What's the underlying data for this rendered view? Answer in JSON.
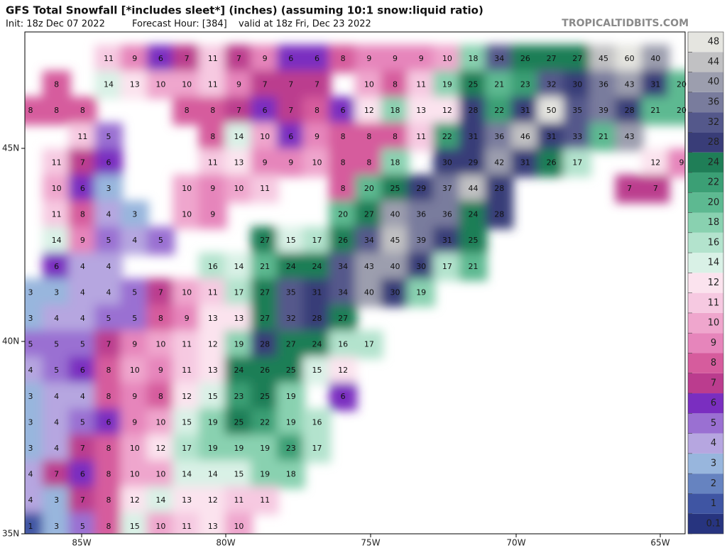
{
  "header": {
    "title": "GFS Total Snowfall [*includes sleet*] (inches) (assuming 10:1 snow:liquid ratio)",
    "init": "Init: 18z Dec 07 2022",
    "forecast_hour": "Forecast Hour: [384]",
    "valid": "valid at 18z Fri, Dec 23 2022",
    "credit": "TROPICALTIDBITS.COM"
  },
  "axes": {
    "latitudes": [
      "45N",
      "40N",
      "35N"
    ],
    "longitudes": [
      "85W",
      "80W",
      "75W",
      "70W",
      "65W"
    ]
  },
  "colorbar": {
    "levels": [
      0.1,
      1,
      2,
      3,
      4,
      5,
      6,
      7,
      8,
      9,
      10,
      11,
      12,
      14,
      16,
      18,
      20,
      22,
      24,
      28,
      32,
      36,
      40,
      44,
      48
    ],
    "colors": [
      "#27347f",
      "#3f55a3",
      "#6683c0",
      "#98b6dd",
      "#b6a6e0",
      "#9a70d2",
      "#7a2ec0",
      "#bb3c8e",
      "#d65c9d",
      "#e685bb",
      "#efa6cd",
      "#f6c9e1",
      "#fbe3ee",
      "#d9f1e6",
      "#b3e3cd",
      "#89d1b0",
      "#5db991",
      "#3b9f75",
      "#1f7e57",
      "#393d78",
      "#54588b",
      "#797c9d",
      "#9c9eae",
      "#c1c1c3",
      "#e5e5e0"
    ]
  },
  "map": {
    "rows": [
      [
        11,
        9,
        6,
        7,
        11,
        7,
        9,
        6,
        6,
        8,
        9,
        9,
        9,
        10,
        18,
        34,
        26,
        27,
        27,
        45,
        60,
        40
      ],
      [
        8,
        14,
        13,
        10,
        10,
        11,
        9,
        7,
        7,
        7,
        10,
        8,
        11,
        19,
        25,
        21,
        23,
        32,
        30,
        36,
        43,
        31,
        20
      ],
      [
        8,
        8,
        8,
        8,
        8,
        7,
        6,
        7,
        8,
        6,
        12,
        18,
        13,
        12,
        28,
        22,
        31,
        50,
        35,
        39,
        28,
        21,
        20
      ],
      [
        11,
        5,
        8,
        14,
        10,
        6,
        9,
        8,
        8,
        8,
        11,
        22,
        31,
        36,
        46,
        31,
        33,
        21,
        43
      ],
      [
        11,
        7,
        6,
        11,
        13,
        9,
        9,
        10,
        8,
        8,
        18,
        30,
        29,
        42,
        31,
        26,
        17,
        12,
        9
      ],
      [
        10,
        6,
        3,
        10,
        9,
        10,
        11,
        8,
        20,
        25,
        29,
        37,
        44,
        28,
        7,
        7
      ],
      [
        11,
        8,
        4,
        3,
        10,
        9,
        20,
        27,
        40,
        36,
        36,
        24,
        28
      ],
      [
        14,
        9,
        5,
        4,
        5,
        27,
        15,
        17,
        26,
        34,
        45,
        39,
        31,
        25
      ],
      [
        6,
        4,
        4,
        16,
        14,
        21,
        24,
        24,
        34,
        43,
        40,
        30,
        17,
        21
      ],
      [
        3,
        3,
        4,
        4,
        5,
        7,
        10,
        11,
        17,
        27,
        35,
        31,
        34,
        40,
        30,
        19
      ],
      [
        3,
        4,
        4,
        5,
        5,
        8,
        9,
        13,
        13,
        27,
        32,
        28,
        27
      ],
      [
        5,
        5,
        5,
        7,
        9,
        10,
        11,
        12,
        19,
        28,
        27,
        24,
        16,
        17
      ],
      [
        4,
        5,
        6,
        8,
        10,
        9,
        11,
        13,
        24,
        26,
        25,
        15,
        12
      ],
      [
        3,
        4,
        4,
        8,
        9,
        8,
        12,
        15,
        23,
        25,
        19,
        6
      ],
      [
        3,
        4,
        5,
        6,
        9,
        10,
        15,
        19,
        25,
        22,
        19,
        16
      ],
      [
        3,
        4,
        7,
        8,
        10,
        12,
        17,
        19,
        19,
        19,
        23,
        17
      ],
      [
        4,
        7,
        6,
        8,
        10,
        10,
        14,
        14,
        15,
        19,
        18
      ],
      [
        4,
        3,
        7,
        8,
        12,
        14,
        13,
        12,
        11,
        11
      ],
      [
        1,
        3,
        5,
        8,
        15,
        10,
        11,
        13,
        10
      ]
    ]
  }
}
